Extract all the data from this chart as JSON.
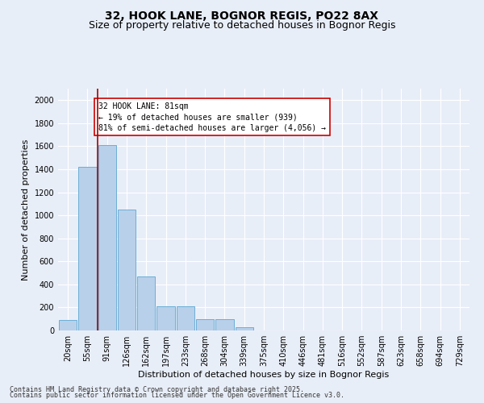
{
  "title_line1": "32, HOOK LANE, BOGNOR REGIS, PO22 8AX",
  "title_line2": "Size of property relative to detached houses in Bognor Regis",
  "xlabel": "Distribution of detached houses by size in Bognor Regis",
  "ylabel": "Number of detached properties",
  "categories": [
    "20sqm",
    "55sqm",
    "91sqm",
    "126sqm",
    "162sqm",
    "197sqm",
    "233sqm",
    "268sqm",
    "304sqm",
    "339sqm",
    "375sqm",
    "410sqm",
    "446sqm",
    "481sqm",
    "516sqm",
    "552sqm",
    "587sqm",
    "623sqm",
    "658sqm",
    "694sqm",
    "729sqm"
  ],
  "values": [
    90,
    1420,
    1610,
    1050,
    470,
    210,
    210,
    100,
    100,
    30,
    0,
    0,
    0,
    0,
    0,
    0,
    0,
    0,
    0,
    0,
    0
  ],
  "bar_color": "#b8d0ea",
  "bar_edge_color": "#6baed6",
  "vline_color": "#aa0000",
  "annotation_text": "32 HOOK LANE: 81sqm\n← 19% of detached houses are smaller (939)\n81% of semi-detached houses are larger (4,056) →",
  "annotation_box_color": "#ffffff",
  "annotation_box_edge": "#cc0000",
  "ylim": [
    0,
    2100
  ],
  "yticks": [
    0,
    200,
    400,
    600,
    800,
    1000,
    1200,
    1400,
    1600,
    1800,
    2000
  ],
  "background_color": "#e8eef8",
  "grid_color": "#ffffff",
  "footer_line1": "Contains HM Land Registry data © Crown copyright and database right 2025.",
  "footer_line2": "Contains public sector information licensed under the Open Government Licence v3.0.",
  "title_fontsize": 10,
  "subtitle_fontsize": 9,
  "axis_label_fontsize": 8,
  "tick_fontsize": 7,
  "annotation_fontsize": 7,
  "footer_fontsize": 6
}
